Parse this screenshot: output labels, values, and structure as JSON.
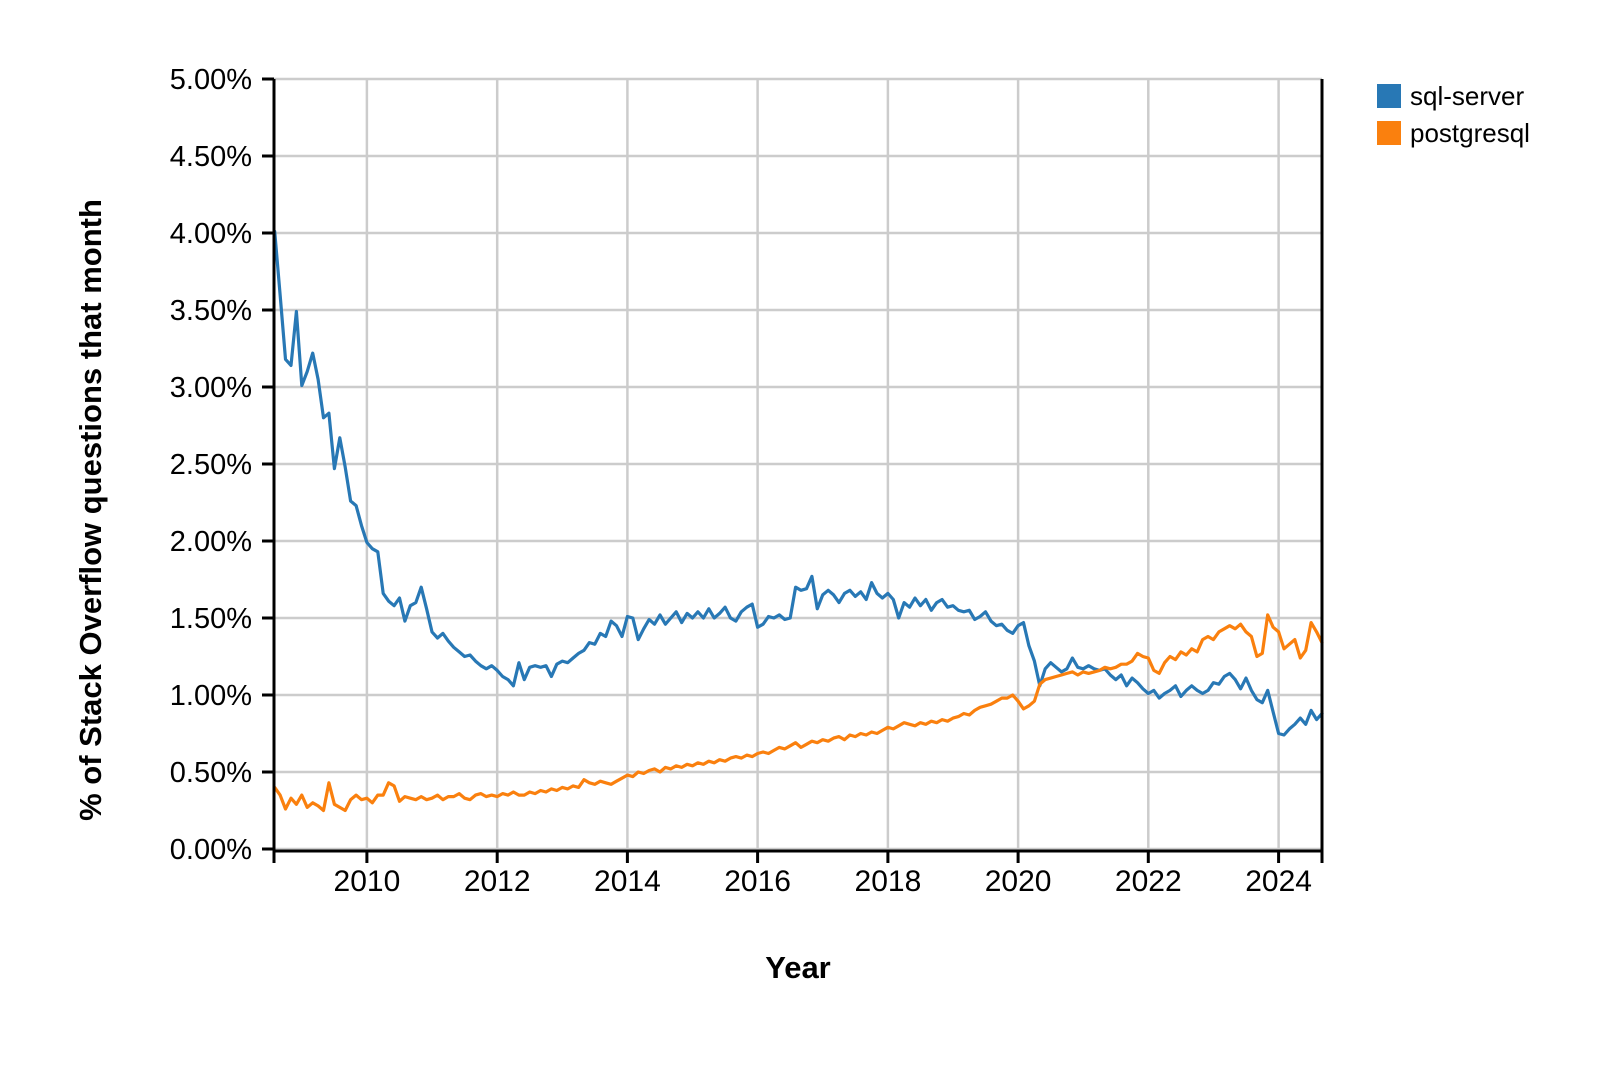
{
  "chart_data": {
    "type": "line",
    "title": "",
    "xlabel": "Year",
    "ylabel": "% of Stack Overflow questions that month",
    "grid": true,
    "legend_position": "top-right",
    "x_domain": [
      2008.573,
      2024.667
    ],
    "y_domain": [
      0,
      5
    ],
    "x_ticks": [
      2010,
      2012,
      2014,
      2016,
      2018,
      2020,
      2022,
      2024
    ],
    "x_tick_labels": [
      "2010",
      "2012",
      "2014",
      "2016",
      "2018",
      "2020",
      "2022",
      "2024"
    ],
    "y_ticks": [
      0,
      0.5,
      1.0,
      1.5,
      2.0,
      2.5,
      3.0,
      3.5,
      4.0,
      4.5,
      5.0
    ],
    "y_tick_labels": [
      "0.00%",
      "0.50%",
      "1.00%",
      "1.50%",
      "2.00%",
      "2.50%",
      "3.00%",
      "3.50%",
      "4.00%",
      "4.50%",
      "5.00%"
    ],
    "x_start_year": 2008,
    "x_start_month": 8,
    "x_step_months": 1,
    "grid_color": "#cccccc",
    "axis_color": "#000000",
    "series": [
      {
        "name": "sql-server",
        "color": "#2878b5",
        "values": [
          4.01,
          3.6,
          3.18,
          3.14,
          3.49,
          3.01,
          3.1,
          3.22,
          3.05,
          2.8,
          2.83,
          2.47,
          2.67,
          2.48,
          2.26,
          2.23,
          2.1,
          1.99,
          1.95,
          1.93,
          1.66,
          1.61,
          1.58,
          1.63,
          1.48,
          1.58,
          1.6,
          1.7,
          1.56,
          1.41,
          1.37,
          1.4,
          1.35,
          1.31,
          1.28,
          1.25,
          1.26,
          1.22,
          1.19,
          1.17,
          1.19,
          1.16,
          1.12,
          1.1,
          1.06,
          1.21,
          1.1,
          1.18,
          1.19,
          1.18,
          1.19,
          1.12,
          1.2,
          1.22,
          1.21,
          1.24,
          1.27,
          1.29,
          1.34,
          1.33,
          1.4,
          1.38,
          1.48,
          1.45,
          1.38,
          1.51,
          1.5,
          1.36,
          1.43,
          1.49,
          1.46,
          1.52,
          1.46,
          1.5,
          1.54,
          1.47,
          1.53,
          1.5,
          1.54,
          1.5,
          1.56,
          1.5,
          1.53,
          1.57,
          1.5,
          1.48,
          1.54,
          1.57,
          1.59,
          1.44,
          1.46,
          1.51,
          1.5,
          1.52,
          1.49,
          1.5,
          1.7,
          1.68,
          1.69,
          1.77,
          1.56,
          1.65,
          1.68,
          1.65,
          1.6,
          1.66,
          1.68,
          1.64,
          1.67,
          1.62,
          1.73,
          1.66,
          1.63,
          1.66,
          1.62,
          1.5,
          1.6,
          1.57,
          1.63,
          1.58,
          1.62,
          1.55,
          1.6,
          1.62,
          1.57,
          1.58,
          1.55,
          1.54,
          1.55,
          1.49,
          1.51,
          1.54,
          1.48,
          1.45,
          1.46,
          1.42,
          1.4,
          1.45,
          1.47,
          1.32,
          1.22,
          1.06,
          1.17,
          1.21,
          1.18,
          1.15,
          1.17,
          1.24,
          1.18,
          1.17,
          1.19,
          1.17,
          1.16,
          1.17,
          1.13,
          1.1,
          1.13,
          1.06,
          1.11,
          1.08,
          1.04,
          1.01,
          1.03,
          0.98,
          1.01,
          1.03,
          1.06,
          0.99,
          1.03,
          1.06,
          1.03,
          1.01,
          1.03,
          1.08,
          1.07,
          1.12,
          1.14,
          1.1,
          1.04,
          1.11,
          1.03,
          0.97,
          0.95,
          1.03,
          0.89,
          0.75,
          0.74,
          0.78,
          0.81,
          0.85,
          0.81,
          0.9,
          0.84,
          0.88
        ]
      },
      {
        "name": "postgresql",
        "color": "#fa800e",
        "values": [
          0.4,
          0.35,
          0.26,
          0.33,
          0.29,
          0.35,
          0.27,
          0.3,
          0.28,
          0.25,
          0.43,
          0.29,
          0.27,
          0.25,
          0.32,
          0.35,
          0.32,
          0.33,
          0.3,
          0.35,
          0.35,
          0.43,
          0.41,
          0.31,
          0.34,
          0.33,
          0.32,
          0.34,
          0.32,
          0.33,
          0.35,
          0.32,
          0.34,
          0.34,
          0.36,
          0.33,
          0.32,
          0.35,
          0.36,
          0.34,
          0.35,
          0.34,
          0.36,
          0.35,
          0.37,
          0.35,
          0.35,
          0.37,
          0.36,
          0.38,
          0.37,
          0.39,
          0.38,
          0.4,
          0.39,
          0.41,
          0.4,
          0.45,
          0.43,
          0.42,
          0.44,
          0.43,
          0.42,
          0.44,
          0.46,
          0.48,
          0.47,
          0.5,
          0.49,
          0.51,
          0.52,
          0.5,
          0.53,
          0.52,
          0.54,
          0.53,
          0.55,
          0.54,
          0.56,
          0.55,
          0.57,
          0.56,
          0.58,
          0.57,
          0.59,
          0.6,
          0.59,
          0.61,
          0.6,
          0.62,
          0.63,
          0.62,
          0.64,
          0.66,
          0.65,
          0.67,
          0.69,
          0.66,
          0.68,
          0.7,
          0.69,
          0.71,
          0.7,
          0.72,
          0.73,
          0.71,
          0.74,
          0.73,
          0.75,
          0.74,
          0.76,
          0.75,
          0.77,
          0.79,
          0.78,
          0.8,
          0.82,
          0.81,
          0.8,
          0.82,
          0.81,
          0.83,
          0.82,
          0.84,
          0.83,
          0.85,
          0.86,
          0.88,
          0.87,
          0.9,
          0.92,
          0.93,
          0.94,
          0.96,
          0.98,
          0.98,
          1.0,
          0.96,
          0.91,
          0.93,
          0.96,
          1.07,
          1.1,
          1.11,
          1.12,
          1.13,
          1.14,
          1.15,
          1.13,
          1.15,
          1.14,
          1.15,
          1.16,
          1.18,
          1.17,
          1.18,
          1.2,
          1.2,
          1.22,
          1.27,
          1.25,
          1.24,
          1.16,
          1.14,
          1.21,
          1.25,
          1.23,
          1.28,
          1.26,
          1.3,
          1.28,
          1.36,
          1.38,
          1.36,
          1.41,
          1.43,
          1.45,
          1.43,
          1.46,
          1.41,
          1.38,
          1.25,
          1.27,
          1.52,
          1.44,
          1.41,
          1.3,
          1.33,
          1.36,
          1.24,
          1.29,
          1.47,
          1.41,
          1.34
        ]
      }
    ]
  }
}
